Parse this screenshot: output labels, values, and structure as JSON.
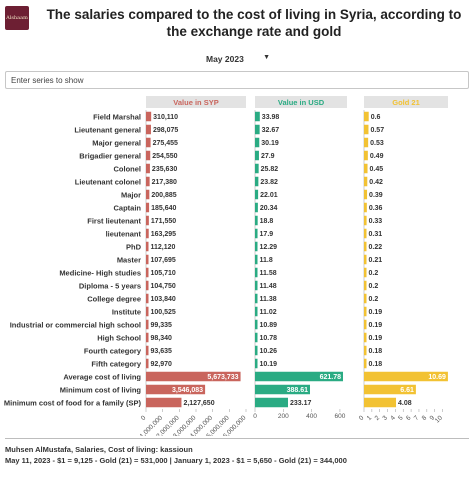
{
  "header": {
    "title": "The salaries compared to the cost of living in Syria, according to the exchange rate and gold",
    "logo_text": "Alshaam"
  },
  "controls": {
    "date_select": "May 2023",
    "search_placeholder": "Enter series to show"
  },
  "footer": {
    "source": "Muhsen AlMustafa, Salaries, Cost of living: kassioun",
    "note": "May 11, 2023 - $1 = 9,125 - Gold (21) = 531,000 | January 1, 2023 - $1 = 5,650 - Gold (21) = 344,000"
  },
  "colors": {
    "syp": "#c9655d",
    "usd": "#2aab83",
    "gold": "#f2c233",
    "header_bg": "#e3e3e3"
  },
  "chart_data": {
    "type": "bar",
    "categories": [
      "Field Marshal",
      "Lieutenant general",
      "Major general",
      "Brigadier general",
      "Colonel",
      "Lieutenant colonel",
      "Major",
      "Captain",
      "First lieutenant",
      "lieutenant",
      "PhD",
      "Master",
      "Medicine- High studies",
      "Diploma - 5 years",
      "College degree",
      "Institute",
      "Industrial or commercial high school",
      "High School",
      "Fourth category",
      "Fifth category",
      "Average cost of living",
      "Minimum cost of living",
      "Minimum cost of food for a family (SP)"
    ],
    "series": [
      {
        "name": "Value in SYP",
        "values": [
          310110,
          298075,
          275455,
          254550,
          235630,
          217380,
          200885,
          185640,
          171550,
          163295,
          112120,
          107695,
          105710,
          104750,
          103840,
          100525,
          99335,
          98340,
          93635,
          92970,
          5673733,
          3546083,
          2127650
        ],
        "labels": [
          "310,110",
          "298,075",
          "275,455",
          "254,550",
          "235,630",
          "217,380",
          "200,885",
          "185,640",
          "171,550",
          "163,295",
          "112,120",
          "107,695",
          "105,710",
          "104,750",
          "103,840",
          "100,525",
          "99,335",
          "98,340",
          "93,635",
          "92,970",
          "5,673,733",
          "3,546,083",
          "2,127,650"
        ],
        "xlim": [
          0,
          6000000
        ],
        "ticks": [
          "0",
          "1,000,000",
          "2,000,000",
          "3,000,000",
          "4,000,000",
          "5,000,000",
          "6,000,000"
        ]
      },
      {
        "name": "Value in USD",
        "values": [
          33.98,
          32.67,
          30.19,
          27.9,
          25.82,
          23.82,
          22.01,
          20.34,
          18.8,
          17.9,
          12.29,
          11.8,
          11.58,
          11.48,
          11.38,
          11.02,
          10.89,
          10.78,
          10.26,
          10.19,
          621.78,
          388.61,
          233.17
        ],
        "labels": [
          "33.98",
          "32.67",
          "30.19",
          "27.9",
          "25.82",
          "23.82",
          "22.01",
          "20.34",
          "18.8",
          "17.9",
          "12.29",
          "11.8",
          "11.58",
          "11.48",
          "11.38",
          "11.02",
          "10.89",
          "10.78",
          "10.26",
          "10.19",
          "621.78",
          "388.61",
          "233.17"
        ],
        "xlim": [
          0,
          650
        ],
        "ticks": [
          "0",
          "200",
          "400",
          "600"
        ]
      },
      {
        "name": "Gold 21",
        "values": [
          0.6,
          0.57,
          0.53,
          0.49,
          0.45,
          0.42,
          0.39,
          0.36,
          0.33,
          0.31,
          0.22,
          0.21,
          0.2,
          0.2,
          0.2,
          0.19,
          0.19,
          0.19,
          0.18,
          0.18,
          10.69,
          6.61,
          4.08
        ],
        "labels": [
          "0.6",
          "0.57",
          "0.53",
          "0.49",
          "0.45",
          "0.42",
          "0.39",
          "0.36",
          "0.33",
          "0.31",
          "0.22",
          "0.21",
          "0.2",
          "0.2",
          "0.2",
          "0.19",
          "0.19",
          "0.19",
          "0.18",
          "0.18",
          "10.69",
          "6.61",
          "4.08"
        ],
        "xlim": [
          0,
          10.7
        ],
        "ticks": [
          "0",
          "1",
          "2",
          "3",
          "4",
          "5",
          "6",
          "7",
          "8",
          "9",
          "10"
        ]
      }
    ]
  }
}
